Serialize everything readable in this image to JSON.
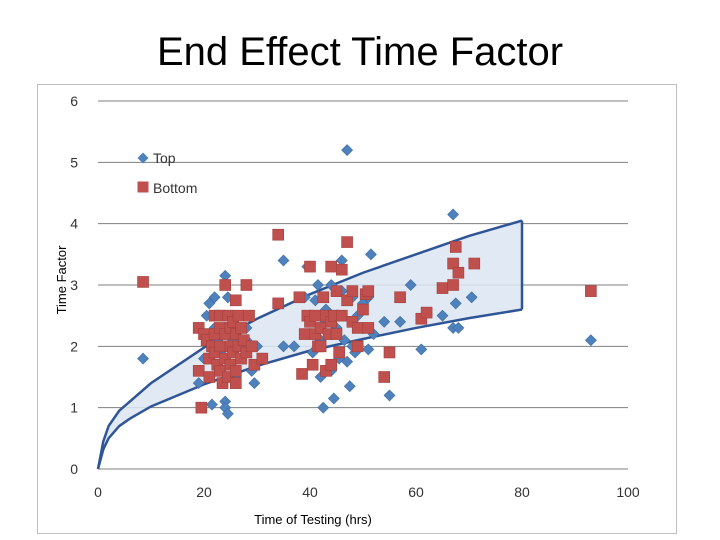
{
  "slide": {
    "title": "End Effect Time Factor"
  },
  "chart_data": {
    "type": "scatter",
    "xlabel": "Time of Testing (hrs)",
    "ylabel": "Time Factor",
    "xlim": [
      0,
      100
    ],
    "ylim": [
      0,
      6
    ],
    "x_ticks": [
      "0",
      "20",
      "40",
      "60",
      "80",
      "100"
    ],
    "y_ticks": [
      "0",
      "1",
      "2",
      "3",
      "4",
      "5",
      "6"
    ],
    "grid": "horizontal",
    "legend": {
      "placement": "top-left"
    },
    "colors": {
      "top": "#4f81bd",
      "bottom": "#c0504d",
      "band_fill": "#dce6f2",
      "band_line": "#2f5597",
      "grid": "#7f7f7f"
    },
    "series": [
      {
        "name": "Top",
        "marker": "diamond",
        "points": [
          [
            8.5,
            1.8
          ],
          [
            19,
            1.4
          ],
          [
            20,
            1.8
          ],
          [
            20.5,
            2.5
          ],
          [
            21,
            2.7
          ],
          [
            21.5,
            1.05
          ],
          [
            22,
            2.8
          ],
          [
            22,
            2.3
          ],
          [
            22.5,
            2.1
          ],
          [
            23,
            1.9
          ],
          [
            23,
            1.6
          ],
          [
            24,
            3.15
          ],
          [
            24,
            1.1
          ],
          [
            24,
            1.0
          ],
          [
            24.5,
            0.9
          ],
          [
            24.5,
            2.8
          ],
          [
            25,
            1.7
          ],
          [
            25.5,
            2.1
          ],
          [
            26,
            1.5
          ],
          [
            26,
            2.3
          ],
          [
            27,
            2.0
          ],
          [
            28,
            2.1
          ],
          [
            28,
            2.3
          ],
          [
            29,
            1.6
          ],
          [
            29.5,
            1.4
          ],
          [
            30,
            2.0
          ],
          [
            31,
            1.8
          ],
          [
            35,
            3.4
          ],
          [
            35,
            2.0
          ],
          [
            37,
            2.0
          ],
          [
            39,
            2.8
          ],
          [
            39.5,
            3.3
          ],
          [
            40,
            2.5
          ],
          [
            40,
            2.2
          ],
          [
            40.5,
            1.9
          ],
          [
            41,
            2.75
          ],
          [
            41.5,
            3.0
          ],
          [
            42,
            2.1
          ],
          [
            42,
            1.5
          ],
          [
            42.5,
            1.0
          ],
          [
            43,
            2.6
          ],
          [
            43,
            2.4
          ],
          [
            44,
            3.0
          ],
          [
            44,
            1.6
          ],
          [
            44.5,
            1.15
          ],
          [
            45,
            2.3
          ],
          [
            45,
            2.5
          ],
          [
            45.5,
            1.8
          ],
          [
            46,
            3.4
          ],
          [
            46,
            2.9
          ],
          [
            46.5,
            2.1
          ],
          [
            47,
            1.75
          ],
          [
            47,
            5.2
          ],
          [
            47.5,
            1.35
          ],
          [
            48,
            2.8
          ],
          [
            48,
            2.0
          ],
          [
            48.5,
            1.9
          ],
          [
            49,
            2.5
          ],
          [
            50,
            2.7
          ],
          [
            50,
            2.3
          ],
          [
            51,
            1.95
          ],
          [
            51,
            2.8
          ],
          [
            51.5,
            3.5
          ],
          [
            52,
            2.2
          ],
          [
            54,
            2.4
          ],
          [
            55,
            1.2
          ],
          [
            57,
            2.4
          ],
          [
            59,
            3.0
          ],
          [
            61,
            1.95
          ],
          [
            65,
            2.5
          ],
          [
            67,
            4.15
          ],
          [
            67,
            2.3
          ],
          [
            67.5,
            2.7
          ],
          [
            68,
            2.3
          ],
          [
            70.5,
            2.8
          ],
          [
            93,
            2.1
          ]
        ]
      },
      {
        "name": "Bottom",
        "marker": "square",
        "points": [
          [
            8.5,
            3.05
          ],
          [
            19,
            2.3
          ],
          [
            19,
            1.6
          ],
          [
            19.5,
            1.0
          ],
          [
            20,
            2.2
          ],
          [
            20.5,
            2.1
          ],
          [
            21,
            1.8
          ],
          [
            21,
            1.5
          ],
          [
            21.5,
            2.0
          ],
          [
            22,
            2.5
          ],
          [
            22,
            2.2
          ],
          [
            22,
            1.9
          ],
          [
            22.5,
            1.7
          ],
          [
            23,
            2.5
          ],
          [
            23,
            2.3
          ],
          [
            23,
            2.0
          ],
          [
            23,
            1.6
          ],
          [
            23.5,
            1.4
          ],
          [
            24,
            3.0
          ],
          [
            24,
            2.2
          ],
          [
            24,
            1.8
          ],
          [
            24.5,
            2.5
          ],
          [
            24.5,
            1.5
          ],
          [
            25,
            2.3
          ],
          [
            25,
            2.0
          ],
          [
            25,
            1.7
          ],
          [
            25.5,
            2.4
          ],
          [
            25.5,
            1.9
          ],
          [
            26,
            2.75
          ],
          [
            26,
            2.2
          ],
          [
            26,
            1.6
          ],
          [
            26,
            1.4
          ],
          [
            26.5,
            2.5
          ],
          [
            26.5,
            2.0
          ],
          [
            27,
            2.3
          ],
          [
            27,
            1.8
          ],
          [
            27.5,
            2.1
          ],
          [
            28,
            3.0
          ],
          [
            28,
            1.9
          ],
          [
            28.5,
            2.5
          ],
          [
            29,
            2.0
          ],
          [
            29.5,
            1.7
          ],
          [
            31,
            1.8
          ],
          [
            34,
            3.82
          ],
          [
            34,
            2.7
          ],
          [
            38,
            2.8
          ],
          [
            38.5,
            1.55
          ],
          [
            39,
            2.2
          ],
          [
            39.5,
            2.5
          ],
          [
            40,
            3.3
          ],
          [
            40,
            2.4
          ],
          [
            40.5,
            1.7
          ],
          [
            41,
            2.5
          ],
          [
            41,
            2.2
          ],
          [
            41.5,
            2.0
          ],
          [
            42,
            2.3
          ],
          [
            42,
            2.0
          ],
          [
            42.5,
            2.8
          ],
          [
            43,
            2.5
          ],
          [
            43,
            1.6
          ],
          [
            43.5,
            2.2
          ],
          [
            44,
            3.3
          ],
          [
            44,
            2.4
          ],
          [
            44,
            1.7
          ],
          [
            44.5,
            2.5
          ],
          [
            45,
            2.9
          ],
          [
            45,
            2.2
          ],
          [
            45.5,
            1.9
          ],
          [
            46,
            2.5
          ],
          [
            46,
            3.25
          ],
          [
            47,
            3.7
          ],
          [
            47,
            2.75
          ],
          [
            48,
            2.9
          ],
          [
            48,
            2.4
          ],
          [
            49,
            2.3
          ],
          [
            49,
            2.0
          ],
          [
            50,
            2.6
          ],
          [
            50.5,
            2.85
          ],
          [
            51,
            2.9
          ],
          [
            51,
            2.3
          ],
          [
            54,
            1.5
          ],
          [
            55,
            1.9
          ],
          [
            57,
            2.8
          ],
          [
            61,
            2.45
          ],
          [
            62,
            2.55
          ],
          [
            65,
            2.95
          ],
          [
            67,
            3.0
          ],
          [
            67,
            3.35
          ],
          [
            67.5,
            3.62
          ],
          [
            68,
            3.2
          ],
          [
            71,
            3.35
          ],
          [
            93,
            2.9
          ]
        ]
      }
    ],
    "envelope": {
      "upper": [
        [
          0,
          0
        ],
        [
          1,
          0.45
        ],
        [
          2,
          0.7
        ],
        [
          4,
          0.95
        ],
        [
          6,
          1.1
        ],
        [
          10,
          1.4
        ],
        [
          20,
          1.98
        ],
        [
          30,
          2.45
        ],
        [
          40,
          2.85
        ],
        [
          50,
          3.2
        ],
        [
          60,
          3.5
        ],
        [
          70,
          3.8
        ],
        [
          80,
          4.05
        ]
      ],
      "lower": [
        [
          0,
          0
        ],
        [
          1,
          0.32
        ],
        [
          2,
          0.5
        ],
        [
          4,
          0.7
        ],
        [
          6,
          0.82
        ],
        [
          10,
          1.02
        ],
        [
          20,
          1.38
        ],
        [
          30,
          1.68
        ],
        [
          40,
          1.93
        ],
        [
          50,
          2.12
        ],
        [
          60,
          2.3
        ],
        [
          70,
          2.46
        ],
        [
          80,
          2.6
        ]
      ]
    }
  }
}
